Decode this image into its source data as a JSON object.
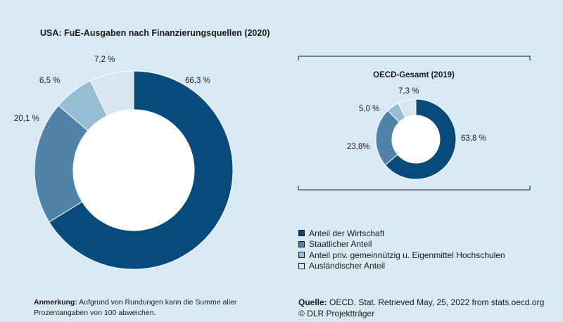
{
  "chart_data": [
    {
      "type": "pie",
      "donut": true,
      "title": "USA: FuE-Ausgaben nach Finanzierungsquellen (2020)",
      "categories": [
        "Anteil der Wirtschaft",
        "Staatlicher Anteil",
        "Anteil priv. gemeinnützig u. Eigenmittel Hochschulen",
        "Ausländischer Anteil"
      ],
      "values": [
        66.3,
        20.1,
        6.5,
        7.2
      ],
      "value_labels": [
        "66,3 %",
        "20,1 %",
        "6,5 %",
        "7,2 %"
      ]
    },
    {
      "type": "pie",
      "donut": true,
      "title": "OECD-Gesamt (2019)",
      "categories": [
        "Anteil der Wirtschaft",
        "Staatlicher Anteil",
        "Anteil priv. gemeinnützig u. Eigenmittel Hochschulen",
        "Ausländischer Anteil"
      ],
      "values": [
        63.8,
        23.8,
        5.0,
        7.3
      ],
      "value_labels": [
        "63,8 %",
        "23,8%",
        "5,0 %",
        "7,3 %"
      ]
    }
  ],
  "colors": [
    "#074b7c",
    "#4f84a8",
    "#98bcd3",
    "#d7e6f0"
  ],
  "legend": {
    "placement": "bottom-right",
    "items": [
      {
        "label": "Anteil der Wirtschaft"
      },
      {
        "label": "Staatlicher Anteil"
      },
      {
        "label": "Anteil priv. gemeinnützig u. Eigenmittel Hochschulen"
      },
      {
        "label": "Ausländischer Anteil"
      }
    ]
  },
  "note": {
    "label": "Anmerkung:",
    "text": " Aufgrund von Rundungen kann die Summe aller Prozentangaben von 100 abweichen."
  },
  "source": {
    "label": "Quelle:",
    "text": " OECD. Stat. Retrieved May, 25, 2022 from stats.oecd.org",
    "copyright": "© DLR Projektträger"
  }
}
